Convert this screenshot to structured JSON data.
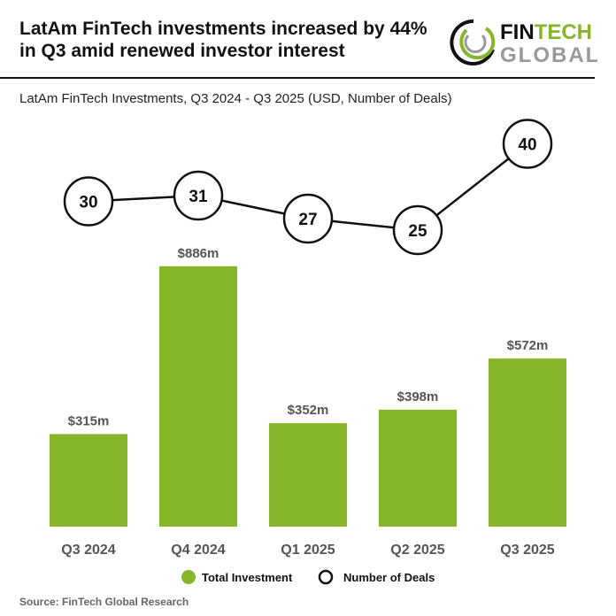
{
  "header": {
    "title_line1": "LatAm FinTech investments increased by 44%",
    "title_line2": "in Q3 amid renewed investor interest",
    "subtitle": "LatAm FinTech Investments, Q3 2024 - Q3 2025 (USD, Number of Deals)"
  },
  "logo": {
    "text1": "FIN",
    "text2": "TECH",
    "text3": "GLOBAL"
  },
  "source": "Source: FinTech Global Research",
  "colors": {
    "bar": "#86b52a",
    "line": "#111111",
    "label": "#555555"
  },
  "chart_data": {
    "type": "bar+line",
    "categories": [
      "Q3 2024",
      "Q4 2024",
      "Q1 2025",
      "Q2 2025",
      "Q3 2025"
    ],
    "series": [
      {
        "name": "Total Investment",
        "type": "bar",
        "values": [
          315,
          886,
          352,
          398,
          572
        ],
        "labels": [
          "$315m",
          "$886m",
          "$352m",
          "$398m",
          "$572m"
        ]
      },
      {
        "name": "Number of Deals",
        "type": "line",
        "values": [
          30,
          31,
          27,
          25,
          40
        ]
      }
    ],
    "legend": "bottom",
    "grid": false
  }
}
